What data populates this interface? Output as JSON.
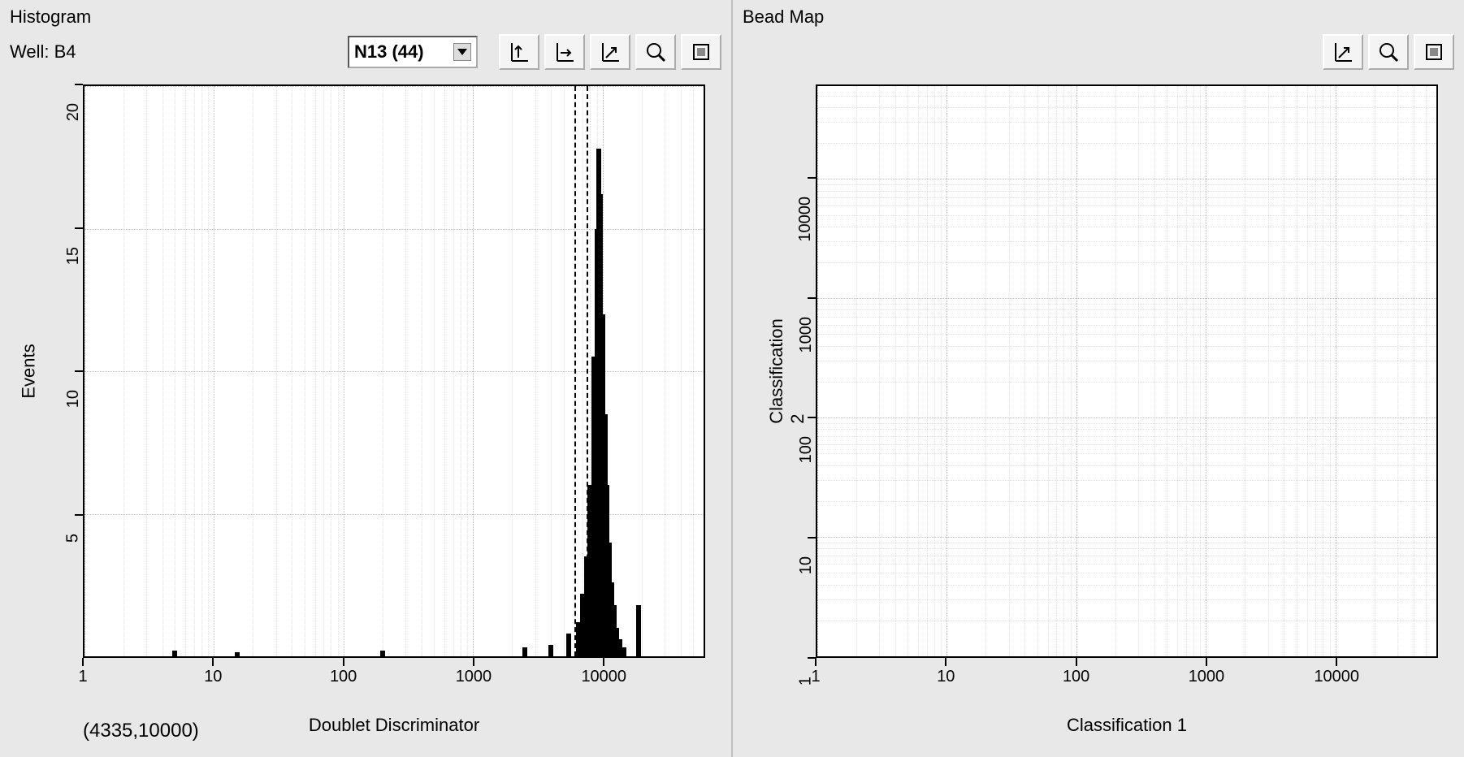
{
  "histogram": {
    "title": "Histogram",
    "well_label": "Well: B4",
    "dropdown": {
      "value": "N13 (44)"
    },
    "toolbar_icons": [
      "autoscale-y-icon",
      "autoscale-x-icon",
      "autoscale-xy-icon",
      "zoom-icon",
      "reset-zoom-icon"
    ],
    "chart": {
      "type": "histogram",
      "x_label": "Doublet Discriminator",
      "y_label": "Events",
      "x_scale": "log",
      "y_scale": "linear",
      "xlim": [
        1,
        60000
      ],
      "ylim": [
        0,
        20
      ],
      "x_ticks": [
        1,
        10,
        100,
        1000,
        10000
      ],
      "y_ticks": [
        5,
        10,
        15,
        20
      ],
      "grid_color": "#c8c8c8",
      "background_color": "#ffffff",
      "axis_color": "#000000",
      "bar_color": "#000000",
      "gate_lines_x": [
        6000,
        7500
      ],
      "cursor_readout": "(4335,10000)",
      "bars": [
        {
          "x": 5,
          "h": 0.2
        },
        {
          "x": 15,
          "h": 0.15
        },
        {
          "x": 200,
          "h": 0.2
        },
        {
          "x": 2500,
          "h": 0.3
        },
        {
          "x": 4000,
          "h": 0.4
        },
        {
          "x": 5500,
          "h": 0.8
        },
        {
          "x": 6500,
          "h": 1.2
        },
        {
          "x": 7000,
          "h": 2.2
        },
        {
          "x": 7500,
          "h": 3.5
        },
        {
          "x": 8000,
          "h": 6.0
        },
        {
          "x": 8500,
          "h": 10.5
        },
        {
          "x": 9000,
          "h": 15.0
        },
        {
          "x": 9300,
          "h": 17.8
        },
        {
          "x": 9600,
          "h": 16.2
        },
        {
          "x": 10000,
          "h": 12.0
        },
        {
          "x": 10400,
          "h": 8.5
        },
        {
          "x": 10800,
          "h": 6.0
        },
        {
          "x": 11200,
          "h": 4.0
        },
        {
          "x": 11700,
          "h": 2.6
        },
        {
          "x": 12200,
          "h": 1.8
        },
        {
          "x": 12800,
          "h": 1.0
        },
        {
          "x": 13500,
          "h": 0.6
        },
        {
          "x": 14500,
          "h": 0.3
        },
        {
          "x": 19000,
          "h": 1.8
        }
      ]
    }
  },
  "beadmap": {
    "title": "Bead Map",
    "toolbar_icons": [
      "autoscale-xy-icon",
      "zoom-icon",
      "reset-zoom-icon"
    ],
    "chart": {
      "type": "scatter",
      "x_label": "Classification 1",
      "y_label": "Classification 2",
      "x_scale": "log",
      "y_scale": "log",
      "xlim": [
        1,
        60000
      ],
      "ylim": [
        1,
        60000
      ],
      "x_ticks": [
        1,
        10,
        100,
        1000,
        10000
      ],
      "y_ticks": [
        1,
        10,
        100,
        1000,
        10000
      ],
      "grid_color": "#c8c8c8",
      "background_color": "#ffffff",
      "axis_color": "#000000",
      "points": []
    }
  },
  "colors": {
    "panel_bg": "#e8e8e8",
    "button_face": "#f4f4f4"
  }
}
